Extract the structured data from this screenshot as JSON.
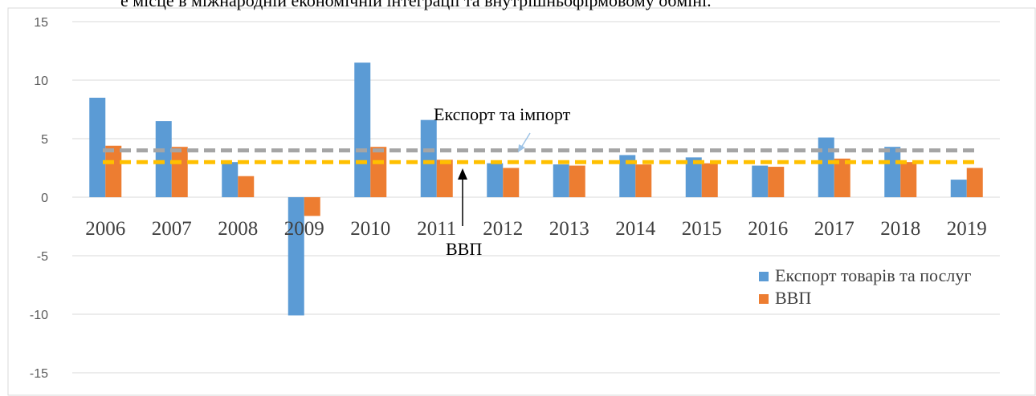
{
  "chart_data": {
    "type": "bar",
    "header_text": "е місце в міжнародній економічній інтеграції та внутрішньофірмовому обміні.",
    "categories": [
      "2006",
      "2007",
      "2008",
      "2009",
      "2010",
      "2011",
      "2012",
      "2013",
      "2014",
      "2015",
      "2016",
      "2017",
      "2018",
      "2019"
    ],
    "series": [
      {
        "name": "Експорт товарів та послуг",
        "color": "#5b9bd5",
        "values": [
          8.5,
          6.5,
          3.0,
          -10.1,
          11.5,
          6.6,
          2.9,
          2.8,
          3.6,
          3.4,
          2.7,
          5.1,
          4.3,
          1.5
        ]
      },
      {
        "name": "ВВП",
        "color": "#ed7d31",
        "values": [
          4.4,
          4.3,
          1.8,
          -1.6,
          4.3,
          3.2,
          2.5,
          2.7,
          2.8,
          2.9,
          2.6,
          3.3,
          3.0,
          2.5
        ]
      }
    ],
    "reference_lines": [
      {
        "value": 4,
        "color": "#a5a5a5"
      },
      {
        "value": 3,
        "color": "#ffc000"
      }
    ],
    "annotations": [
      "Експорт та імпорт",
      "ВВП"
    ],
    "ylim": [
      -15,
      15
    ],
    "yticks": [
      -15,
      -10,
      -5,
      0,
      5,
      10,
      15
    ],
    "grid": true
  }
}
